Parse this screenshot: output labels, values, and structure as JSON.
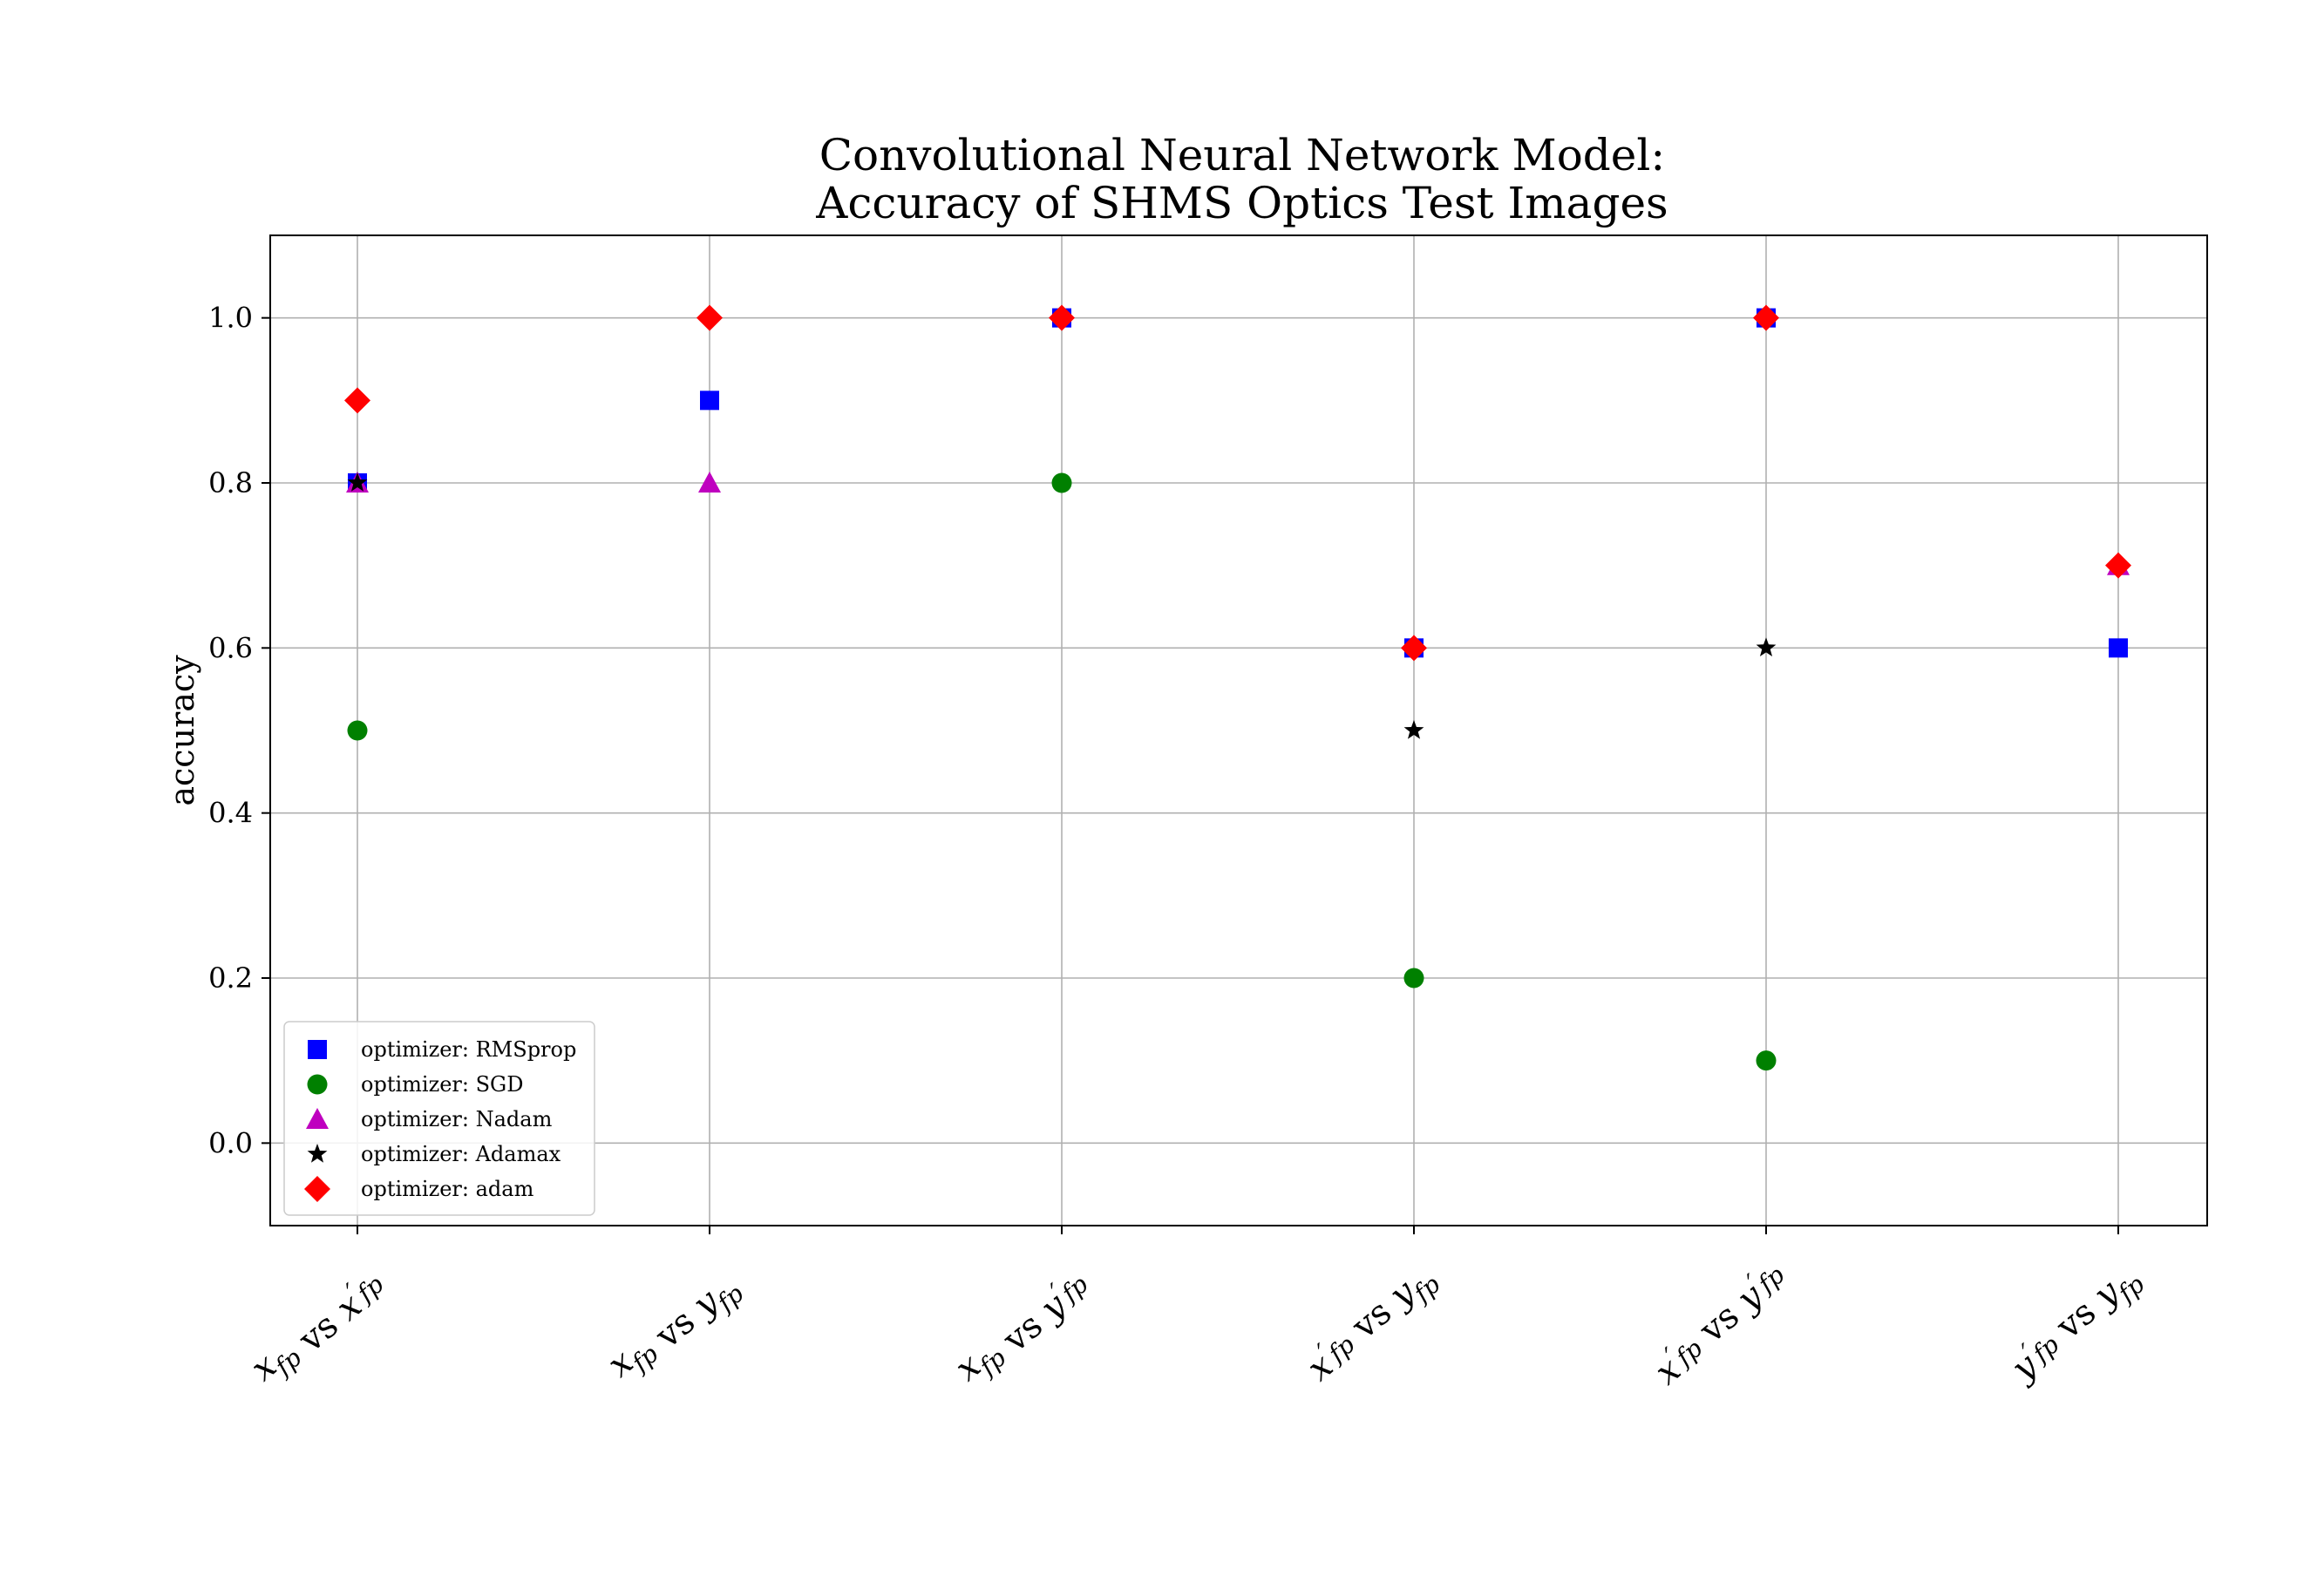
{
  "chart_data": {
    "type": "scatter",
    "title_lines": [
      "Convolutional Neural Network Model:",
      "Accuracy of SHMS Optics Test Images"
    ],
    "ylabel": "accuracy",
    "xlabel": "",
    "ylim": [
      -0.1,
      1.1
    ],
    "yticks": [
      0.0,
      0.2,
      0.4,
      0.6,
      0.8,
      1.0
    ],
    "ytick_labels": [
      "0.0",
      "0.2",
      "0.4",
      "0.6",
      "0.8",
      "1.0"
    ],
    "grid": true,
    "legend_position": "lower-left",
    "categories": [
      {
        "a": "x",
        "a_prime": false,
        "b": "x",
        "b_prime": true
      },
      {
        "a": "x",
        "a_prime": false,
        "b": "y",
        "b_prime": false
      },
      {
        "a": "x",
        "a_prime": false,
        "b": "y",
        "b_prime": true
      },
      {
        "a": "x",
        "a_prime": true,
        "b": "y",
        "b_prime": false
      },
      {
        "a": "x",
        "a_prime": true,
        "b": "y",
        "b_prime": true
      },
      {
        "a": "y",
        "a_prime": true,
        "b": "y",
        "b_prime": false
      }
    ],
    "subscript": "fp",
    "vs_word": "vs",
    "series": [
      {
        "name": "optimizer: RMSprop",
        "marker": "square",
        "color": "#0000ff",
        "values": [
          0.8,
          0.9,
          1.0,
          0.6,
          1.0,
          0.6
        ]
      },
      {
        "name": "optimizer: SGD",
        "marker": "circle",
        "color": "#008000",
        "values": [
          0.5,
          null,
          0.8,
          0.2,
          0.1,
          null
        ]
      },
      {
        "name": "optimizer: Nadam",
        "marker": "triangle",
        "color": "#bf00bf",
        "values": [
          0.8,
          0.8,
          null,
          null,
          null,
          0.7
        ]
      },
      {
        "name": "optimizer: Adamax",
        "marker": "star",
        "color": "#000000",
        "values": [
          0.8,
          null,
          null,
          0.5,
          0.6,
          null
        ]
      },
      {
        "name": "optimizer: adam",
        "marker": "diamond",
        "color": "#ff0000",
        "values": [
          0.9,
          1.0,
          1.0,
          0.6,
          1.0,
          0.7
        ]
      }
    ]
  }
}
